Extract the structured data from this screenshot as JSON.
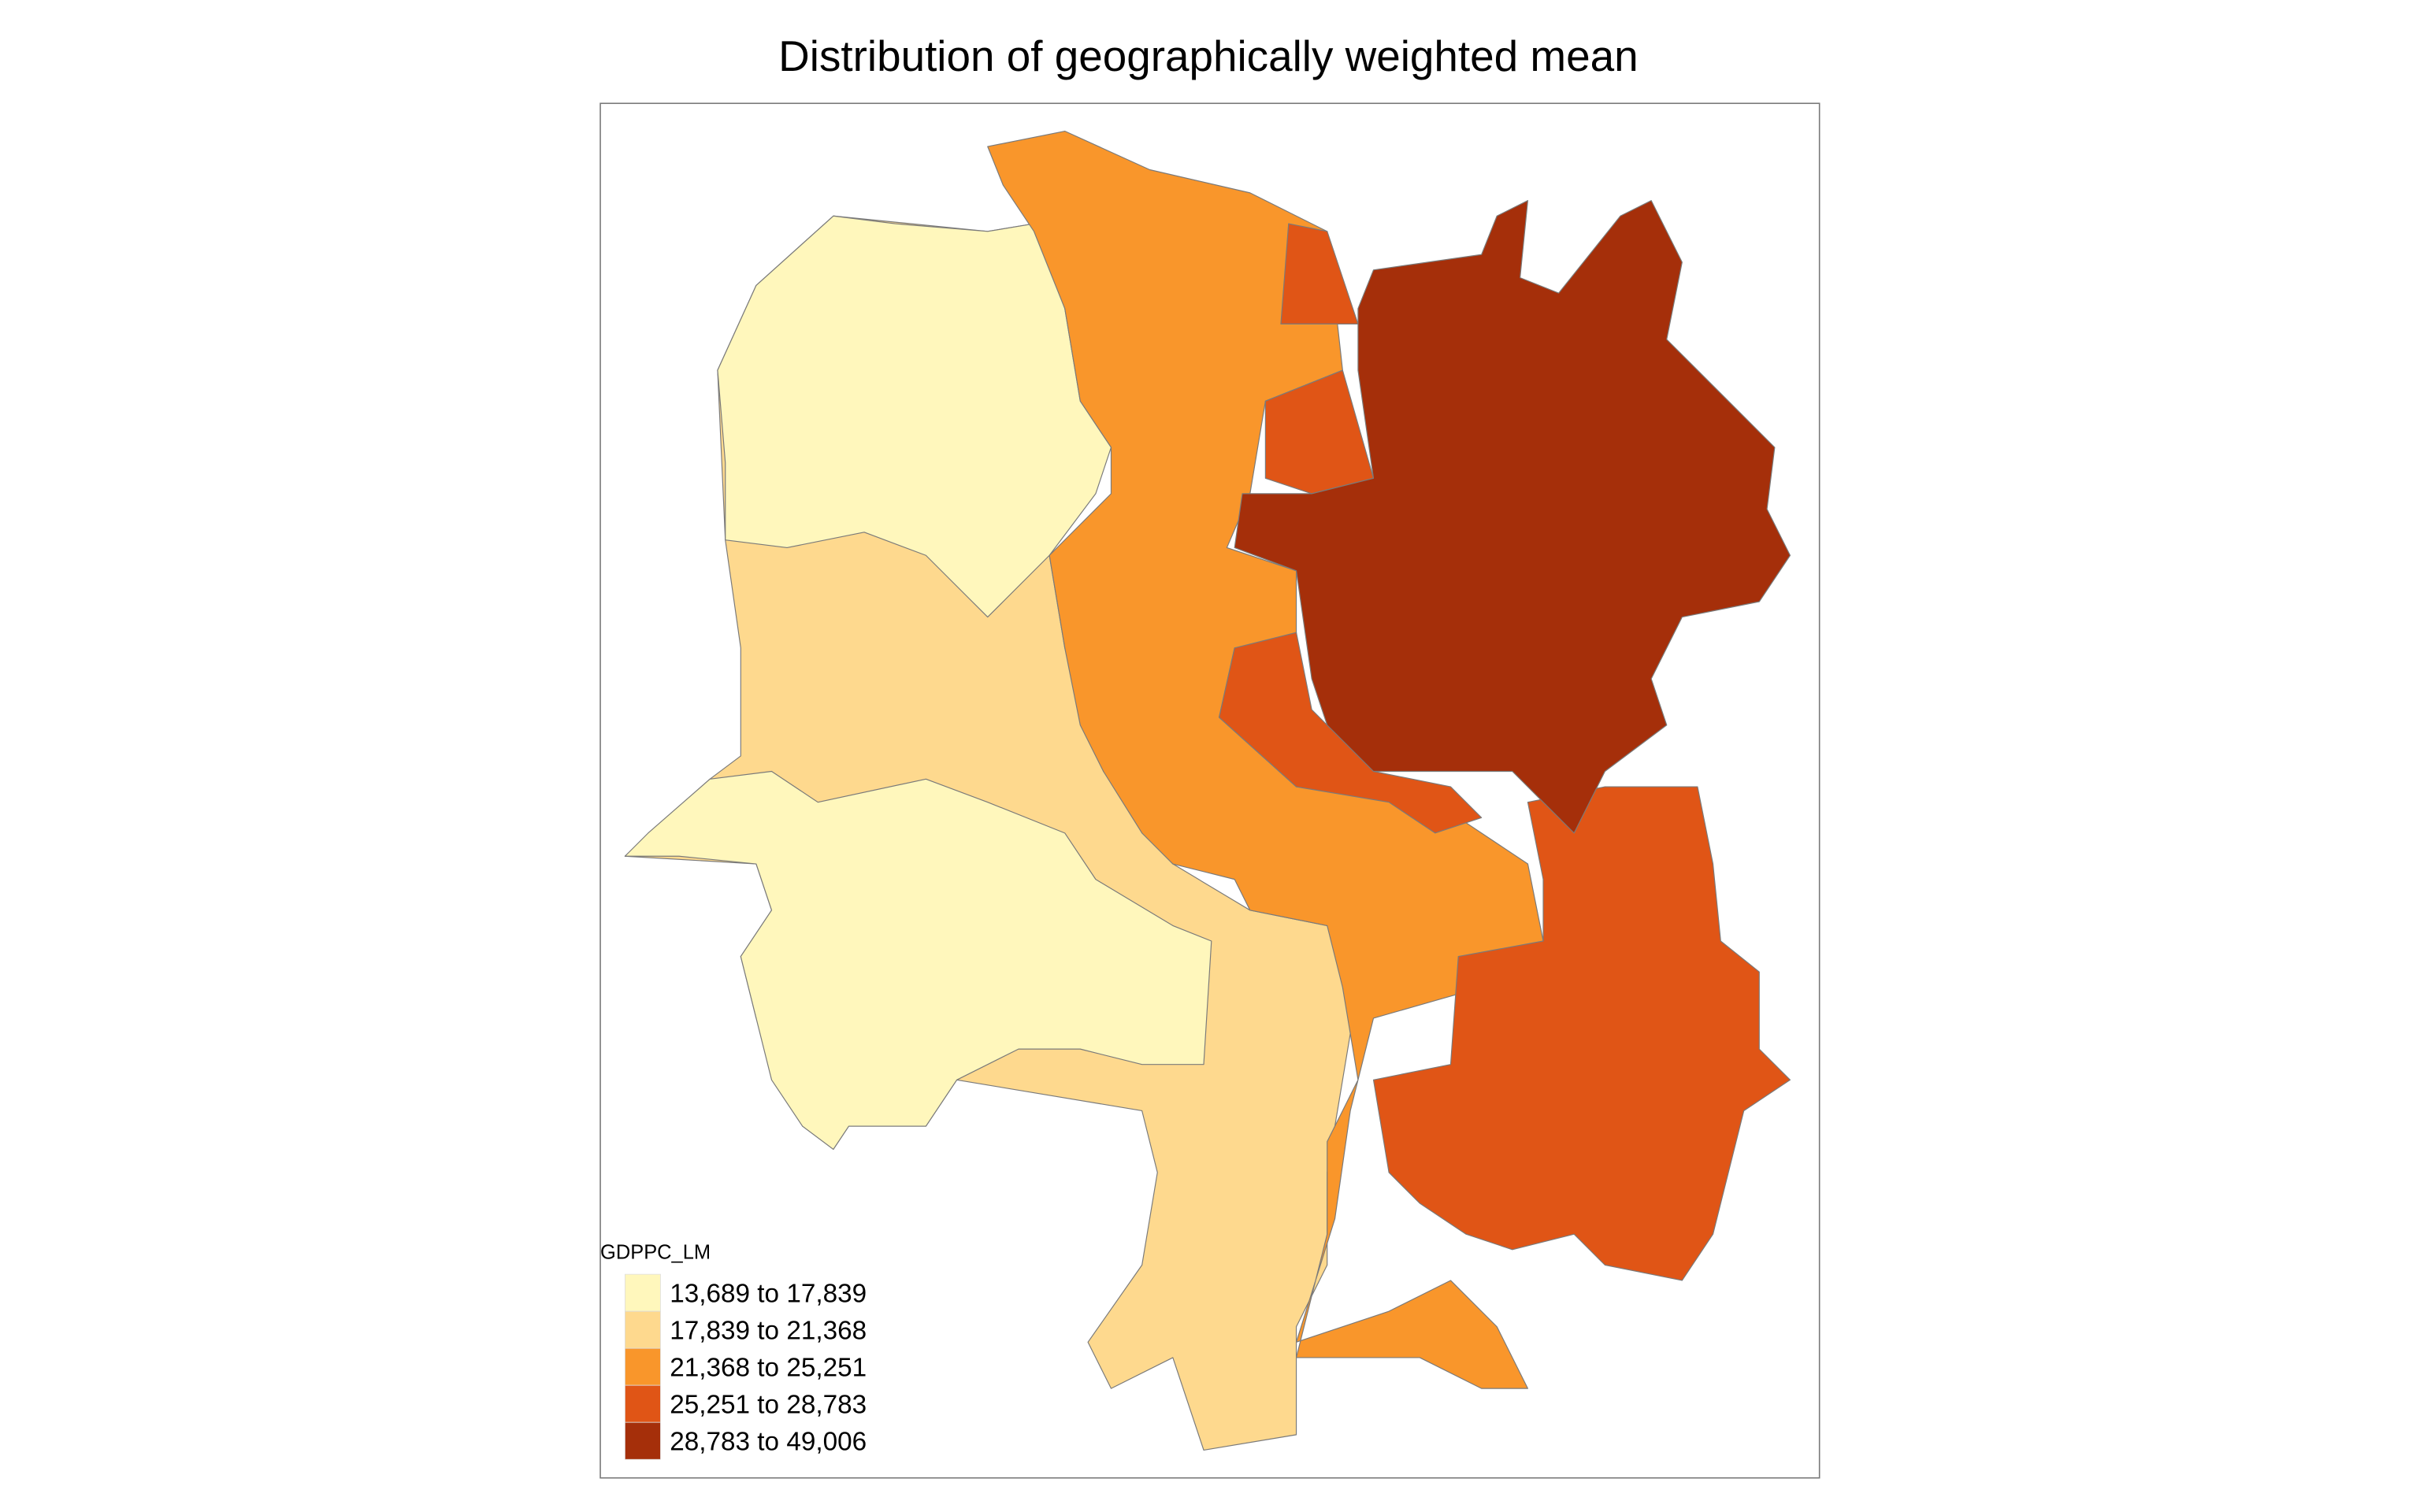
{
  "title": "Distribution of geographically weighted mean",
  "legend": {
    "title": "GDPPC_LM",
    "items": [
      {
        "label": "13,689 to 17,839",
        "color": "#fff7bc"
      },
      {
        "label": "17,839 to 21,368",
        "color": "#fed98e"
      },
      {
        "label": "21,368 to 25,251",
        "color": "#f9962b"
      },
      {
        "label": "25,251 to 28,783",
        "color": "#e05516"
      },
      {
        "label": "28,783 to 49,006",
        "color": "#a52f0a"
      }
    ]
  }
}
